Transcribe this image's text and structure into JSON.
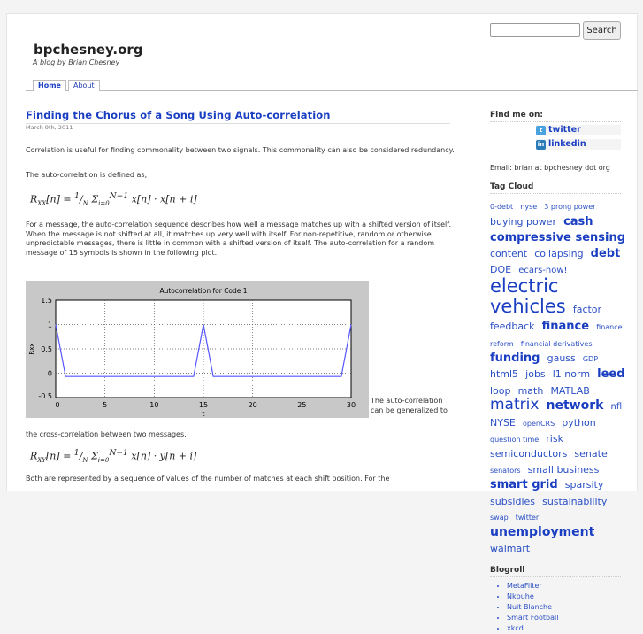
{
  "search": {
    "placeholder": "",
    "button": "Search"
  },
  "site": {
    "title": "bpchesney.org",
    "tagline": "A blog by Brian Chesney"
  },
  "nav": [
    {
      "label": "Home",
      "active": true
    },
    {
      "label": "About",
      "active": false
    }
  ],
  "post": {
    "title": "Finding the Chorus of a Song Using Auto-correlation",
    "date": "March 9th, 2011",
    "p1": "Correlation is useful for finding commonality between two signals.  This commonality can also be considered redundancy.",
    "p2": "The auto-correlation is defined as,",
    "p3": "For a message, the auto-correlation sequence describes how well a message matches up with a shifted version of itself.  When the message is not shifted at all, it matches up very well with itself.  For non-repetitive, random or otherwise unpredictable messages, there is little in common with a shifted version of itself.  The auto-correlation for a random message of 15 symbols is shown in the following plot.",
    "p4a": "The auto-correlation can be generalized to",
    "p4b": "the cross-correlation between two messages.",
    "p5": "Both are represented by a sequence of values of the number of matches at each shift position.  For the"
  },
  "chart_data": {
    "type": "line",
    "title": "Autocorrelation for Code 1",
    "xlabel": "t",
    "ylabel": "Rxx",
    "xlim": [
      0,
      30
    ],
    "ylim": [
      -0.5,
      1.5
    ],
    "xticks": [
      0,
      5,
      10,
      15,
      20,
      25,
      30
    ],
    "yticks": [
      -0.5,
      0,
      0.5,
      1,
      1.5
    ],
    "grid": true,
    "color": "#5555ff",
    "x": [
      0,
      1,
      2,
      3,
      4,
      5,
      6,
      7,
      8,
      9,
      10,
      11,
      12,
      13,
      14,
      15,
      16,
      17,
      18,
      19,
      20,
      21,
      22,
      23,
      24,
      25,
      26,
      27,
      28,
      29,
      30
    ],
    "y": [
      1,
      -0.067,
      -0.067,
      -0.067,
      -0.067,
      -0.067,
      -0.067,
      -0.067,
      -0.067,
      -0.067,
      -0.067,
      -0.067,
      -0.067,
      -0.067,
      -0.067,
      1,
      -0.067,
      -0.067,
      -0.067,
      -0.067,
      -0.067,
      -0.067,
      -0.067,
      -0.067,
      -0.067,
      -0.067,
      -0.067,
      -0.067,
      -0.067,
      -0.067,
      1
    ]
  },
  "sidebar": {
    "find_title": "Find me on:",
    "social": [
      {
        "label": "twitter",
        "icon": "twitter-icon"
      },
      {
        "label": "linkedin",
        "icon": "linkedin-icon"
      }
    ],
    "email": "Email: brian at bpchesney dot org",
    "tag_title": "Tag Cloud",
    "tags": [
      {
        "t": "0-debt",
        "s": 8
      },
      {
        "t": "nyse",
        "s": 8
      },
      {
        "t": "3 prong power",
        "s": 8
      },
      {
        "t": "buying power",
        "s": 11
      },
      {
        "t": "cash",
        "s": 13,
        "b": 1
      },
      {
        "t": "compressive sensing",
        "s": 13,
        "b": 1
      },
      {
        "t": "content",
        "s": 11
      },
      {
        "t": "collapsing",
        "s": 11
      },
      {
        "t": "debt",
        "s": 13,
        "b": 1
      },
      {
        "t": "DOE",
        "s": 11
      },
      {
        "t": "ecars-now!",
        "s": 10
      },
      {
        "t": "electric vehicles",
        "s": 21
      },
      {
        "t": "factor",
        "s": 11
      },
      {
        "t": "feedback",
        "s": 11
      },
      {
        "t": "finance",
        "s": 13,
        "b": 1
      },
      {
        "t": "finance reform",
        "s": 8
      },
      {
        "t": "financial derivatives",
        "s": 8
      },
      {
        "t": "funding",
        "s": 13,
        "b": 1
      },
      {
        "t": "gauss",
        "s": 11
      },
      {
        "t": "GDP",
        "s": 8
      },
      {
        "t": "html5",
        "s": 11
      },
      {
        "t": "jobs",
        "s": 11
      },
      {
        "t": "l1 norm",
        "s": 11
      },
      {
        "t": "leed",
        "s": 13,
        "b": 1
      },
      {
        "t": "loop",
        "s": 11
      },
      {
        "t": "math",
        "s": 11
      },
      {
        "t": "MATLAB",
        "s": 11
      },
      {
        "t": "matrix",
        "s": 17
      },
      {
        "t": "network",
        "s": 14,
        "b": 1
      },
      {
        "t": "nfl",
        "s": 10
      },
      {
        "t": "NYSE",
        "s": 11
      },
      {
        "t": "openCRS",
        "s": 8
      },
      {
        "t": "python",
        "s": 11
      },
      {
        "t": "question time",
        "s": 8
      },
      {
        "t": "risk",
        "s": 11
      },
      {
        "t": "semiconductors",
        "s": 11
      },
      {
        "t": "senate",
        "s": 11
      },
      {
        "t": "senators",
        "s": 8
      },
      {
        "t": "small business",
        "s": 11
      },
      {
        "t": "smart grid",
        "s": 13,
        "b": 1
      },
      {
        "t": "sparsity",
        "s": 11
      },
      {
        "t": "subsidies",
        "s": 11
      },
      {
        "t": "sustainability",
        "s": 11
      },
      {
        "t": "swap",
        "s": 8
      },
      {
        "t": "twitter",
        "s": 8
      },
      {
        "t": "unemployment",
        "s": 14,
        "b": 1
      },
      {
        "t": "walmart",
        "s": 11
      }
    ],
    "blogroll_title": "Blogroll",
    "blogroll": [
      "MetaFilter",
      "Nkpuhe",
      "Nuit Blanche",
      "Smart Football",
      "xkcd"
    ]
  }
}
